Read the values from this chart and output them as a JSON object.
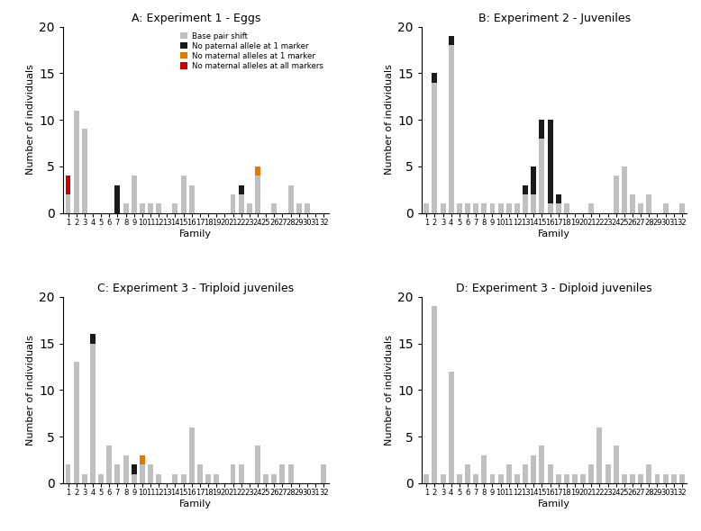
{
  "title_A": "A: Experiment 1 - Eggs",
  "title_B": "B: Experiment 2 - Juveniles",
  "title_C": "C: Experiment 3 - Triploid juveniles",
  "title_D": "D: Experiment 3 - Diploid juveniles",
  "ylabel": "Number of individuals",
  "xlabel": "Family",
  "ylim": [
    0,
    20
  ],
  "yticks": [
    0,
    5,
    10,
    15,
    20
  ],
  "colors": {
    "gray": "#c0c0c0",
    "black": "#1a1a1a",
    "orange": "#e07b00",
    "red": "#cc0000"
  },
  "legend_labels": [
    "Base pair shift",
    "No paternal allele at 1 marker",
    "No maternal alleles at 1 marker",
    "No maternal alleles at all markers"
  ],
  "panels": {
    "A": {
      "families": [
        1,
        2,
        3,
        4,
        5,
        6,
        7,
        8,
        9,
        10,
        11,
        12,
        13,
        14,
        15,
        16,
        17,
        18,
        19,
        20,
        21,
        22,
        23,
        24,
        25,
        26,
        27,
        28,
        29,
        30,
        31,
        32
      ],
      "gray": [
        2,
        11,
        9,
        0,
        0,
        0,
        0,
        1,
        4,
        1,
        1,
        1,
        0,
        1,
        4,
        3,
        0,
        0,
        0,
        0,
        2,
        2,
        1,
        4,
        0,
        1,
        0,
        3,
        1,
        1,
        0,
        0
      ],
      "black": [
        0,
        0,
        0,
        0,
        0,
        0,
        3,
        0,
        0,
        0,
        0,
        0,
        0,
        0,
        0,
        0,
        0,
        0,
        0,
        0,
        0,
        1,
        0,
        0,
        0,
        0,
        0,
        0,
        0,
        0,
        0,
        0
      ],
      "orange": [
        0,
        0,
        0,
        0,
        0,
        0,
        0,
        0,
        0,
        0,
        0,
        0,
        0,
        0,
        0,
        0,
        0,
        0,
        0,
        0,
        0,
        0,
        0,
        1,
        0,
        0,
        0,
        0,
        0,
        0,
        0,
        0
      ],
      "red": [
        2,
        0,
        0,
        0,
        0,
        0,
        0,
        0,
        0,
        0,
        0,
        0,
        0,
        0,
        0,
        0,
        0,
        0,
        0,
        0,
        0,
        0,
        0,
        0,
        0,
        0,
        0,
        0,
        0,
        0,
        0,
        0
      ]
    },
    "B": {
      "families": [
        1,
        2,
        3,
        4,
        5,
        6,
        7,
        8,
        9,
        10,
        11,
        12,
        13,
        14,
        15,
        16,
        17,
        18,
        19,
        20,
        21,
        22,
        23,
        24,
        25,
        26,
        27,
        28,
        29,
        30,
        31,
        32
      ],
      "gray": [
        1,
        14,
        1,
        18,
        1,
        1,
        1,
        1,
        1,
        1,
        1,
        1,
        2,
        2,
        8,
        1,
        1,
        1,
        0,
        0,
        1,
        0,
        0,
        4,
        5,
        2,
        1,
        2,
        0,
        1,
        0,
        1
      ],
      "black": [
        0,
        1,
        0,
        1,
        0,
        0,
        0,
        0,
        0,
        0,
        0,
        0,
        1,
        3,
        2,
        9,
        1,
        0,
        0,
        0,
        0,
        0,
        0,
        0,
        0,
        0,
        0,
        0,
        0,
        0,
        0,
        0
      ],
      "orange": [
        0,
        0,
        0,
        0,
        0,
        0,
        0,
        0,
        0,
        0,
        0,
        0,
        0,
        0,
        0,
        0,
        0,
        0,
        0,
        0,
        0,
        0,
        0,
        0,
        0,
        0,
        0,
        0,
        0,
        0,
        0,
        0
      ],
      "red": [
        0,
        0,
        0,
        0,
        0,
        0,
        0,
        0,
        0,
        0,
        0,
        0,
        0,
        0,
        0,
        0,
        0,
        0,
        0,
        0,
        0,
        0,
        0,
        0,
        0,
        0,
        0,
        0,
        0,
        0,
        0,
        0
      ]
    },
    "C": {
      "families": [
        1,
        2,
        3,
        4,
        5,
        6,
        7,
        8,
        9,
        10,
        11,
        12,
        13,
        14,
        15,
        16,
        17,
        18,
        19,
        20,
        21,
        22,
        23,
        24,
        25,
        26,
        27,
        28,
        29,
        30,
        31,
        32
      ],
      "gray": [
        2,
        13,
        1,
        15,
        1,
        4,
        2,
        3,
        1,
        2,
        2,
        1,
        0,
        1,
        1,
        6,
        2,
        1,
        1,
        0,
        2,
        2,
        0,
        4,
        1,
        1,
        2,
        2,
        0,
        0,
        0,
        2
      ],
      "black": [
        0,
        0,
        0,
        1,
        0,
        0,
        0,
        0,
        1,
        0,
        0,
        0,
        0,
        0,
        0,
        0,
        0,
        0,
        0,
        0,
        0,
        0,
        0,
        0,
        0,
        0,
        0,
        0,
        0,
        0,
        0,
        0
      ],
      "orange": [
        0,
        0,
        0,
        0,
        0,
        0,
        0,
        0,
        0,
        1,
        0,
        0,
        0,
        0,
        0,
        0,
        0,
        0,
        0,
        0,
        0,
        0,
        0,
        0,
        0,
        0,
        0,
        0,
        0,
        0,
        0,
        0
      ],
      "red": [
        0,
        0,
        0,
        0,
        0,
        0,
        0,
        0,
        0,
        0,
        0,
        0,
        0,
        0,
        0,
        0,
        0,
        0,
        0,
        0,
        0,
        0,
        0,
        0,
        0,
        0,
        0,
        0,
        0,
        0,
        0,
        0
      ]
    },
    "D": {
      "families": [
        1,
        2,
        3,
        4,
        5,
        6,
        7,
        8,
        9,
        10,
        11,
        12,
        13,
        14,
        15,
        16,
        17,
        18,
        19,
        20,
        21,
        22,
        23,
        24,
        25,
        26,
        27,
        28,
        29,
        30,
        31,
        32
      ],
      "gray": [
        1,
        19,
        1,
        12,
        1,
        2,
        1,
        3,
        1,
        1,
        2,
        1,
        2,
        3,
        4,
        2,
        1,
        1,
        1,
        1,
        2,
        6,
        2,
        4,
        1,
        1,
        1,
        2,
        1,
        1,
        1,
        1
      ],
      "black": [
        0,
        0,
        0,
        0,
        0,
        0,
        0,
        0,
        0,
        0,
        0,
        0,
        0,
        0,
        0,
        0,
        0,
        0,
        0,
        0,
        0,
        0,
        0,
        0,
        0,
        0,
        0,
        0,
        0,
        0,
        0,
        0
      ],
      "orange": [
        0,
        0,
        0,
        0,
        0,
        0,
        0,
        0,
        0,
        0,
        0,
        0,
        0,
        0,
        0,
        0,
        0,
        0,
        0,
        0,
        0,
        0,
        0,
        0,
        0,
        0,
        0,
        0,
        0,
        0,
        0,
        0
      ],
      "red": [
        0,
        0,
        0,
        0,
        0,
        0,
        0,
        0,
        0,
        0,
        0,
        0,
        0,
        0,
        0,
        0,
        0,
        0,
        0,
        0,
        0,
        0,
        0,
        0,
        0,
        0,
        0,
        0,
        0,
        0,
        0,
        0
      ]
    }
  }
}
